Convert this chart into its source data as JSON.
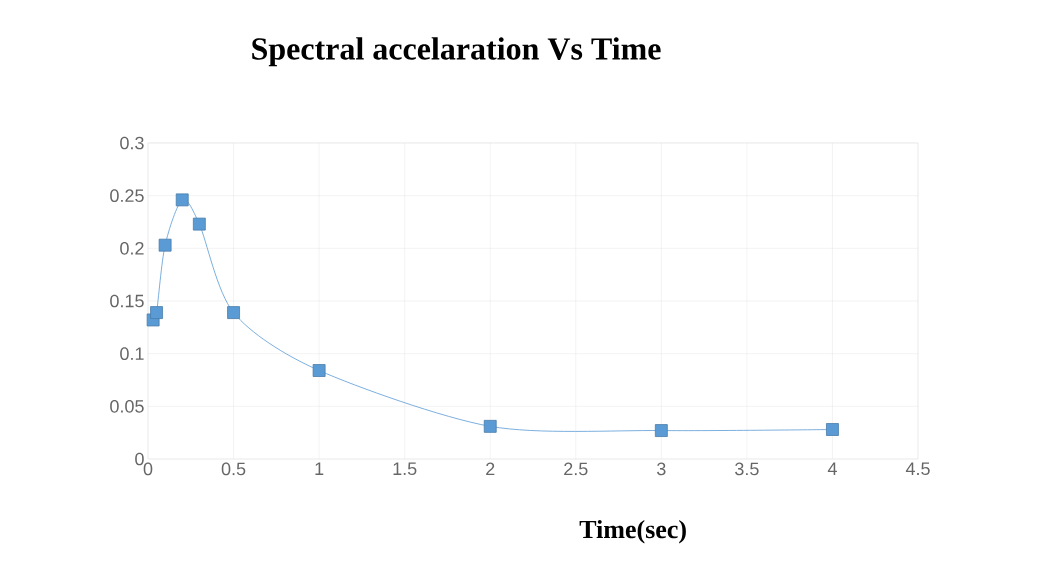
{
  "chart_data": {
    "type": "line",
    "title": "Spectral accelaration Vs Time",
    "xlabel": "Time(sec)",
    "x": [
      0.03,
      0.05,
      0.1,
      0.2,
      0.3,
      0.5,
      1,
      2,
      3,
      4
    ],
    "series": [
      {
        "color": "#5b9bd5",
        "values": [
          0.132,
          0.139,
          0.203,
          0.246,
          0.223,
          0.139,
          0.084,
          0.031,
          0.027,
          0.028
        ]
      }
    ],
    "xlim": [
      0,
      4.5
    ],
    "ylim": [
      0,
      0.3
    ],
    "xticks": [
      0,
      0.5,
      1,
      1.5,
      2,
      2.5,
      3,
      3.5,
      4,
      4.5
    ],
    "yticks": [
      0,
      0.05,
      0.1,
      0.15,
      0.2,
      0.25,
      0.3
    ],
    "grid": true,
    "marker": "square"
  }
}
